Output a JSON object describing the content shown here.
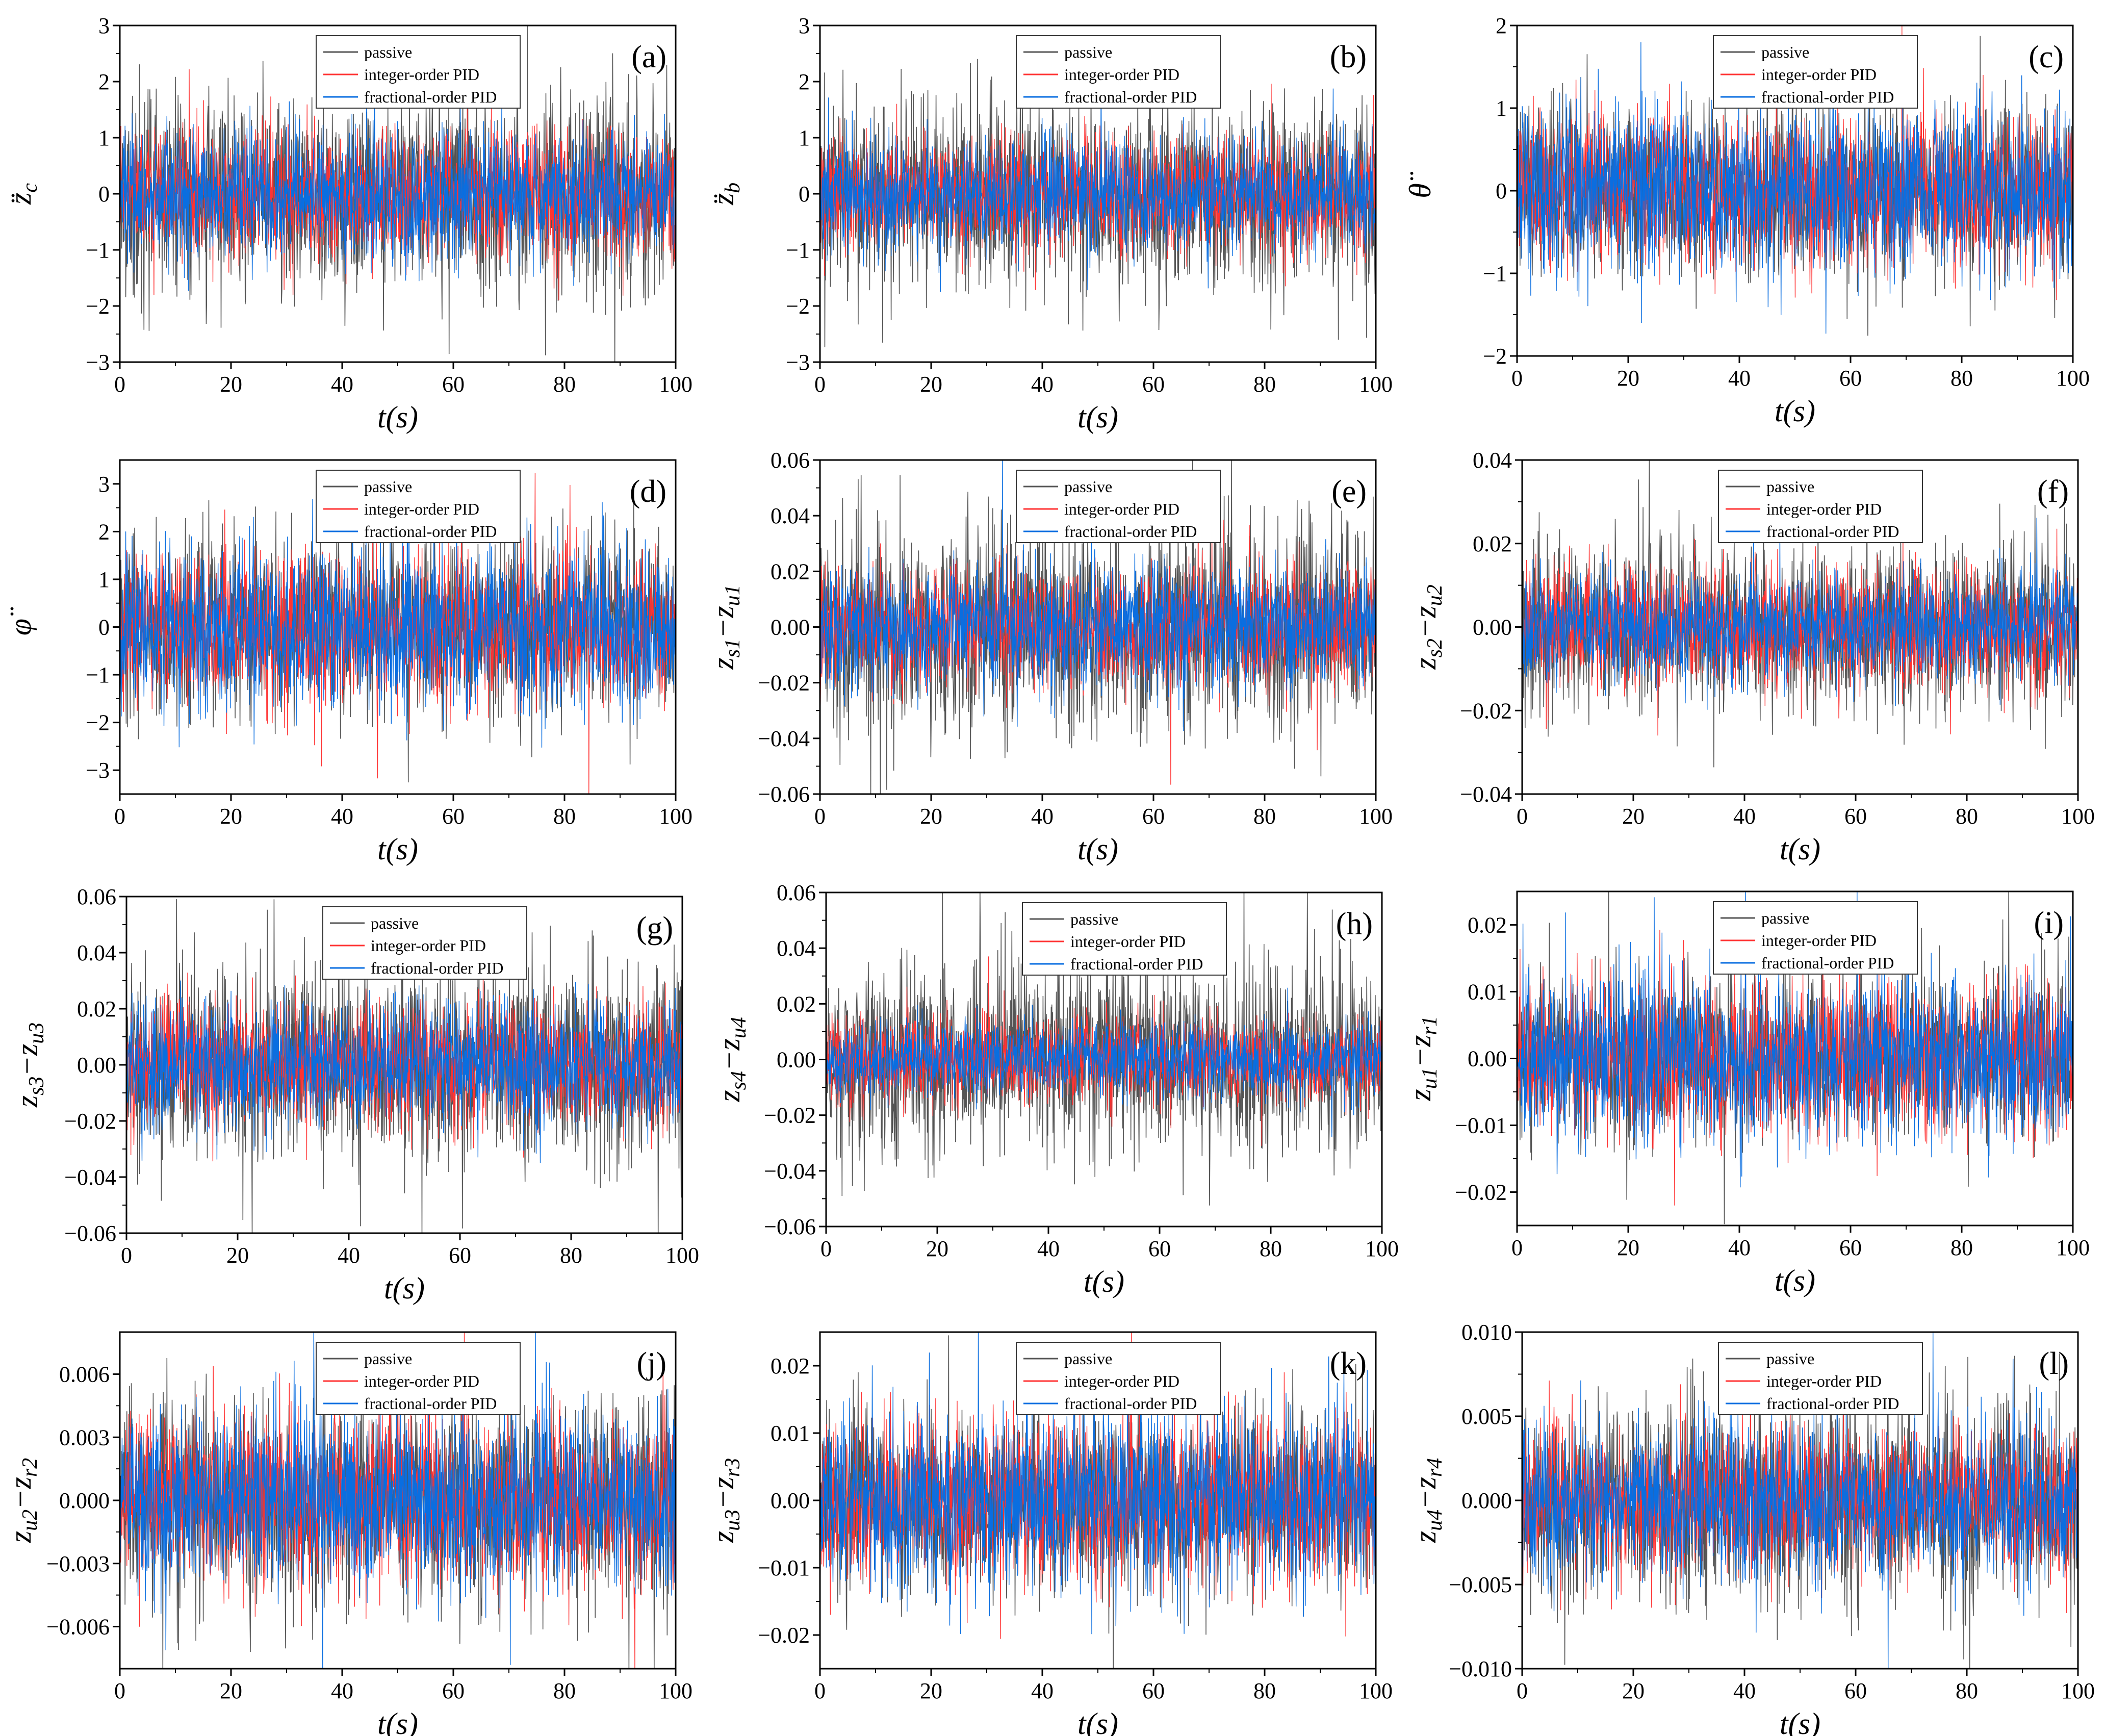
{
  "legend": {
    "entries": [
      "passive",
      "integer-order PID",
      "fractional-order PID"
    ],
    "colors": [
      "#555555",
      "#ff3333",
      "#0a6ee0"
    ]
  },
  "chart_data": [
    {
      "id": "a",
      "type": "line",
      "tag": "(a)",
      "ylabel_main": "z̈",
      "ylabel_sub": "c",
      "xlabel": "t(s)",
      "xlim": [
        0,
        100
      ],
      "xticks": [
        0,
        20,
        40,
        60,
        80,
        100
      ],
      "ylim": [
        -3,
        3
      ],
      "yticks": [
        "-3",
        "-2",
        "-1",
        "0",
        "1",
        "2",
        "3"
      ],
      "yvals": [
        -3,
        -2,
        -1,
        0,
        1,
        2,
        3
      ],
      "series": [
        {
          "name": "passive",
          "amplitude": 1.6
        },
        {
          "name": "integer-order PID",
          "amplitude": 1.0
        },
        {
          "name": "fractional-order PID",
          "amplitude": 1.0
        }
      ],
      "legend": "top-center"
    },
    {
      "id": "b",
      "type": "line",
      "tag": "(b)",
      "ylabel_main": "z̈",
      "ylabel_sub": "b",
      "xlabel": "t(s)",
      "xlim": [
        0,
        100
      ],
      "xticks": [
        0,
        20,
        40,
        60,
        80,
        100
      ],
      "ylim": [
        -3,
        3
      ],
      "yticks": [
        "-3",
        "-2",
        "-1",
        "0",
        "1",
        "2",
        "3"
      ],
      "yvals": [
        -3,
        -2,
        -1,
        0,
        1,
        2,
        3
      ],
      "series": [
        {
          "name": "passive",
          "amplitude": 1.5
        },
        {
          "name": "integer-order PID",
          "amplitude": 0.9
        },
        {
          "name": "fractional-order PID",
          "amplitude": 0.9
        }
      ],
      "legend": "top-center"
    },
    {
      "id": "c",
      "type": "line",
      "tag": "(c)",
      "ylabel_main": "θ̈",
      "ylabel_sub": "",
      "xlabel": "t(s)",
      "xlim": [
        0,
        100
      ],
      "xticks": [
        0,
        20,
        40,
        60,
        80,
        100
      ],
      "ylim": [
        -2,
        2
      ],
      "yticks": [
        "-2",
        "-1",
        "0",
        "1",
        "2"
      ],
      "yvals": [
        -2,
        -1,
        0,
        1,
        2
      ],
      "series": [
        {
          "name": "passive",
          "amplitude": 0.9
        },
        {
          "name": "integer-order PID",
          "amplitude": 0.8
        },
        {
          "name": "fractional-order PID",
          "amplitude": 0.9
        }
      ],
      "legend": "top-center"
    },
    {
      "id": "d",
      "type": "line",
      "tag": "(d)",
      "ylabel_main": "φ̈",
      "ylabel_sub": "",
      "xlabel": "t(s)",
      "xlim": [
        0,
        100
      ],
      "xticks": [
        0,
        20,
        40,
        60,
        80,
        100
      ],
      "ylim": [
        -3.5,
        3.5
      ],
      "yticks": [
        "-3",
        "-2",
        "-1",
        "0",
        "1",
        "2",
        "3"
      ],
      "yvals": [
        -3,
        -2,
        -1,
        0,
        1,
        2,
        3
      ],
      "series": [
        {
          "name": "passive",
          "amplitude": 1.7
        },
        {
          "name": "integer-order PID",
          "amplitude": 1.4
        },
        {
          "name": "fractional-order PID",
          "amplitude": 1.5
        }
      ],
      "legend": "top-center"
    },
    {
      "id": "e",
      "type": "line",
      "tag": "(e)",
      "ylabel_main": "z",
      "ylabel_sub": "s1",
      "ylabel_main2": "−z",
      "ylabel_sub2": "u1",
      "xlabel": "t(s)",
      "xlim": [
        0,
        100
      ],
      "xticks": [
        0,
        20,
        40,
        60,
        80,
        100
      ],
      "ylim": [
        -0.06,
        0.06
      ],
      "yticks": [
        "-0.06",
        "-0.04",
        "-0.02",
        "0.00",
        "0.02",
        "0.04",
        "0.06"
      ],
      "yvals": [
        -0.06,
        -0.04,
        -0.02,
        0,
        0.02,
        0.04,
        0.06
      ],
      "series": [
        {
          "name": "passive",
          "amplitude": 0.034
        },
        {
          "name": "integer-order PID",
          "amplitude": 0.02
        },
        {
          "name": "fractional-order PID",
          "amplitude": 0.02
        }
      ],
      "legend": "top-center"
    },
    {
      "id": "f",
      "type": "line",
      "tag": "(f)",
      "ylabel_main": "z",
      "ylabel_sub": "s2",
      "ylabel_main2": "−z",
      "ylabel_sub2": "u2",
      "xlabel": "t(s)",
      "xlim": [
        0,
        100
      ],
      "xticks": [
        0,
        20,
        40,
        60,
        80,
        100
      ],
      "ylim": [
        -0.04,
        0.04
      ],
      "yticks": [
        "-0.04",
        "-0.02",
        "0.00",
        "0.02",
        "0.04"
      ],
      "yvals": [
        -0.04,
        -0.02,
        0,
        0.02,
        0.04
      ],
      "series": [
        {
          "name": "passive",
          "amplitude": 0.018
        },
        {
          "name": "integer-order PID",
          "amplitude": 0.013
        },
        {
          "name": "fractional-order PID",
          "amplitude": 0.011
        }
      ],
      "legend": "top-center"
    },
    {
      "id": "g",
      "type": "line",
      "tag": "(g)",
      "ylabel_main": "z",
      "ylabel_sub": "s3",
      "ylabel_main2": "−z",
      "ylabel_sub2": "u3",
      "xlabel": "t(s)",
      "xlim": [
        0,
        100
      ],
      "xticks": [
        0,
        20,
        40,
        60,
        80,
        100
      ],
      "ylim": [
        -0.06,
        0.06
      ],
      "yticks": [
        "-0.06",
        "-0.04",
        "-0.02",
        "0.00",
        "0.02",
        "0.04",
        "0.06"
      ],
      "yvals": [
        -0.06,
        -0.04,
        -0.02,
        0,
        0.02,
        0.04,
        0.06
      ],
      "series": [
        {
          "name": "passive",
          "amplitude": 0.032
        },
        {
          "name": "integer-order PID",
          "amplitude": 0.02
        },
        {
          "name": "fractional-order PID",
          "amplitude": 0.02
        }
      ],
      "legend": "top-center"
    },
    {
      "id": "h",
      "type": "line",
      "tag": "(h)",
      "ylabel_main": "z",
      "ylabel_sub": "s4",
      "ylabel_main2": "−z",
      "ylabel_sub2": "u4",
      "xlabel": "t(s)",
      "xlim": [
        0,
        100
      ],
      "xticks": [
        0,
        20,
        40,
        60,
        80,
        100
      ],
      "ylim": [
        -0.06,
        0.06
      ],
      "yticks": [
        "-0.06",
        "-0.04",
        "-0.02",
        "0.00",
        "0.02",
        "0.04",
        "0.06"
      ],
      "yvals": [
        -0.06,
        -0.04,
        -0.02,
        0,
        0.02,
        0.04,
        0.06
      ],
      "series": [
        {
          "name": "passive",
          "amplitude": 0.03
        },
        {
          "name": "integer-order PID",
          "amplitude": 0.014
        },
        {
          "name": "fractional-order PID",
          "amplitude": 0.012
        }
      ],
      "legend": "top-center"
    },
    {
      "id": "i",
      "type": "line",
      "tag": "(i)",
      "ylabel_main": "z",
      "ylabel_sub": "u1",
      "ylabel_main2": "−z",
      "ylabel_sub2": "r1",
      "xlabel": "t(s)",
      "xlim": [
        0,
        100
      ],
      "xticks": [
        0,
        20,
        40,
        60,
        80,
        100
      ],
      "ylim": [
        -0.025,
        0.025
      ],
      "yticks": [
        "-0.02",
        "-0.01",
        "0.00",
        "0.01",
        "0.02"
      ],
      "yvals": [
        -0.02,
        -0.01,
        0,
        0.01,
        0.02
      ],
      "series": [
        {
          "name": "passive",
          "amplitude": 0.011
        },
        {
          "name": "integer-order PID",
          "amplitude": 0.01
        },
        {
          "name": "fractional-order PID",
          "amplitude": 0.011
        }
      ],
      "legend": "top-center"
    },
    {
      "id": "j",
      "type": "line",
      "tag": "(j)",
      "ylabel_main": "z",
      "ylabel_sub": "u2",
      "ylabel_main2": "−z",
      "ylabel_sub2": "r2",
      "xlabel": "t(s)",
      "xlim": [
        0,
        100
      ],
      "xticks": [
        0,
        20,
        40,
        60,
        80,
        100
      ],
      "ylim": [
        -0.008,
        0.008
      ],
      "yticks": [
        "-0.006",
        "-0.003",
        "0.000",
        "0.003",
        "0.006"
      ],
      "yvals": [
        -0.006,
        -0.003,
        0,
        0.003,
        0.006
      ],
      "series": [
        {
          "name": "passive",
          "amplitude": 0.0042
        },
        {
          "name": "integer-order PID",
          "amplitude": 0.0036
        },
        {
          "name": "fractional-order PID",
          "amplitude": 0.0038
        }
      ],
      "legend": "top-center"
    },
    {
      "id": "k",
      "type": "line",
      "tag": "(k)",
      "ylabel_main": "z",
      "ylabel_sub": "u3",
      "ylabel_main2": "−z",
      "ylabel_sub2": "r3",
      "xlabel": "t(s)",
      "xlim": [
        0,
        100
      ],
      "xticks": [
        0,
        20,
        40,
        60,
        80,
        100
      ],
      "ylim": [
        -0.025,
        0.025
      ],
      "yticks": [
        "-0.02",
        "-0.01",
        "0.00",
        "0.01",
        "0.02"
      ],
      "yvals": [
        -0.02,
        -0.01,
        0,
        0.01,
        0.02
      ],
      "series": [
        {
          "name": "passive",
          "amplitude": 0.012
        },
        {
          "name": "integer-order PID",
          "amplitude": 0.011
        },
        {
          "name": "fractional-order PID",
          "amplitude": 0.012
        }
      ],
      "legend": "top-center"
    },
    {
      "id": "l",
      "type": "line",
      "tag": "(l)",
      "ylabel_main": "z",
      "ylabel_sub": "u4",
      "ylabel_main2": "−z",
      "ylabel_sub2": "r4",
      "xlabel": "t(s)",
      "xlim": [
        0,
        100
      ],
      "xticks": [
        0,
        20,
        40,
        60,
        80,
        100
      ],
      "ylim": [
        -0.01,
        0.01
      ],
      "yticks": [
        "-0.010",
        "-0.005",
        "0.000",
        "0.005",
        "0.010"
      ],
      "yvals": [
        -0.01,
        -0.005,
        0,
        0.005,
        0.01
      ],
      "series": [
        {
          "name": "passive",
          "amplitude": 0.0052
        },
        {
          "name": "integer-order PID",
          "amplitude": 0.0038
        },
        {
          "name": "fractional-order PID",
          "amplitude": 0.0042
        }
      ],
      "legend": "top-center"
    }
  ]
}
